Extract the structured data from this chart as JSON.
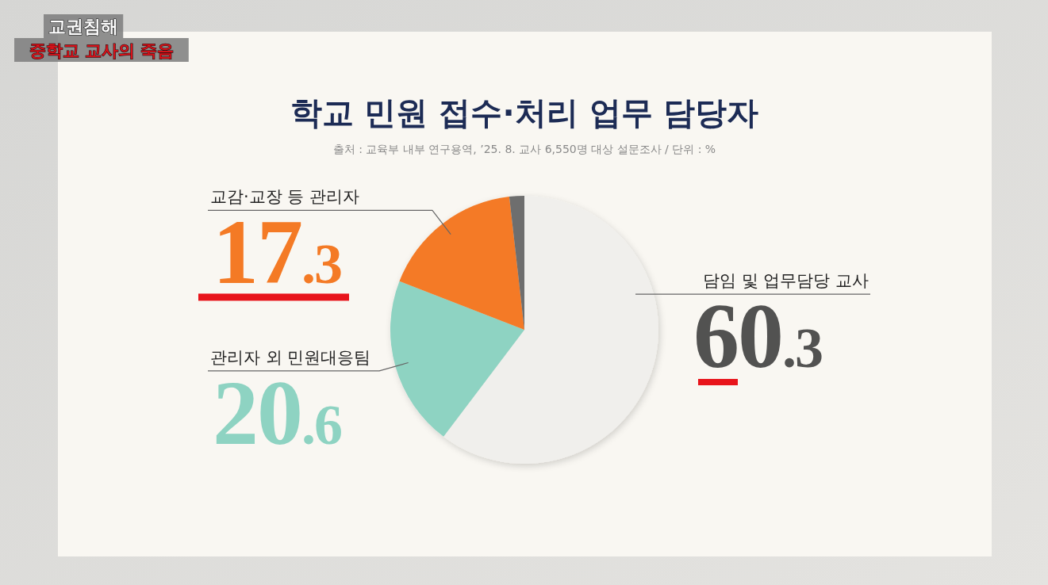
{
  "chart_data": {
    "type": "pie",
    "title": "학교 민원 접수·처리 업무 담당자",
    "subtitle": "출처 : 교육부 내부 연구용역, ’25. 8. 교사 6,550명 대상 설문조사 / 단위 : %",
    "categories": [
      "담임 및 업무담당 교사",
      "관리자 외 민원대응팀",
      "교감·교장 등 관리자",
      null
    ],
    "values": [
      60.3,
      20.6,
      17.3,
      1.8
    ],
    "colors": [
      "#f0efec",
      "#8ed3c2",
      "#f47a25",
      "#6e6e6e"
    ],
    "value_labels": [
      "60.3",
      "20.6",
      "17.3",
      null
    ],
    "annotations": [
      "교권침해",
      "중학교 교사의 죽음"
    ]
  }
}
